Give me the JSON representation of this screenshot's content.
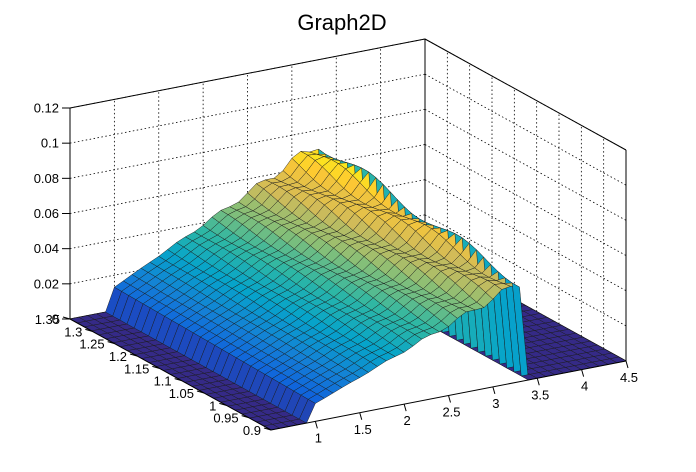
{
  "chart_data": {
    "type": "surface3d",
    "title": "Graph2D",
    "xlabel": "",
    "ylabel": "",
    "zlabel": "",
    "x_range": [
      0.5,
      4.5
    ],
    "y_range": [
      0.9,
      1.35
    ],
    "z_range": [
      0,
      0.12
    ],
    "x_ticks": [
      "1",
      "1.5",
      "2",
      "2.5",
      "3",
      "3.5",
      "4",
      "4.5"
    ],
    "y_ticks": [
      "0.9",
      "0.95",
      "1",
      "1.05",
      "1.1",
      "1.15",
      "1.2",
      "1.25",
      "1.3",
      "1.35"
    ],
    "z_ticks": [
      "0",
      "0.02",
      "0.04",
      "0.06",
      "0.08",
      "0.1",
      "0.12"
    ],
    "grid": true,
    "palette": "kBird",
    "colors": [
      "#352a87",
      "#0f5cdd",
      "#1481d6",
      "#06a4ca",
      "#2eb7a4",
      "#87bf77",
      "#d1bb59",
      "#fec832",
      "#f9fb0e"
    ],
    "surface": {
      "description_of_shape": "z is near 0 for x below about 1 and above 3.3; inside the band z rises roughly linearly with x, from about 0.01 near x=1 to about 0.066 near x=3.3, slightly higher at larger y",
      "x_band": [
        1.0,
        3.3
      ],
      "z_at_band_start": 0.012,
      "z_at_band_end": 0.066
    }
  }
}
